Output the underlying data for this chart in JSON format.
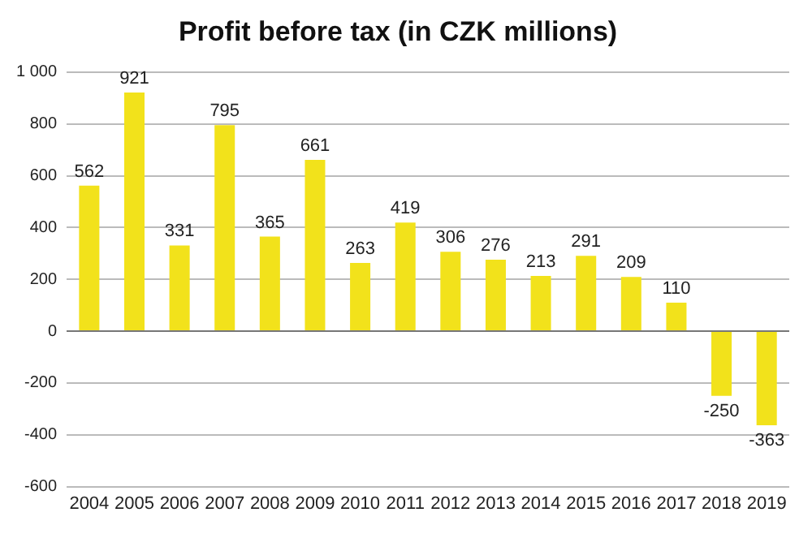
{
  "chart_data": {
    "type": "bar",
    "title": "Profit before tax (in CZK millions)",
    "categories": [
      "2004",
      "2005",
      "2006",
      "2007",
      "2008",
      "2009",
      "2010",
      "2011",
      "2012",
      "2013",
      "2014",
      "2015",
      "2016",
      "2017",
      "2018",
      "2019"
    ],
    "values": [
      562,
      921,
      331,
      795,
      365,
      661,
      263,
      419,
      306,
      276,
      213,
      291,
      209,
      110,
      -250,
      -363
    ],
    "color": "#f2e21b",
    "data_labels": true,
    "legend": false,
    "grid": "y",
    "ylim": [
      -600,
      1000
    ],
    "yticks": [
      -600,
      -400,
      -200,
      0,
      200,
      400,
      600,
      800,
      {
        "value": 1000,
        "label": "1 000"
      }
    ]
  }
}
